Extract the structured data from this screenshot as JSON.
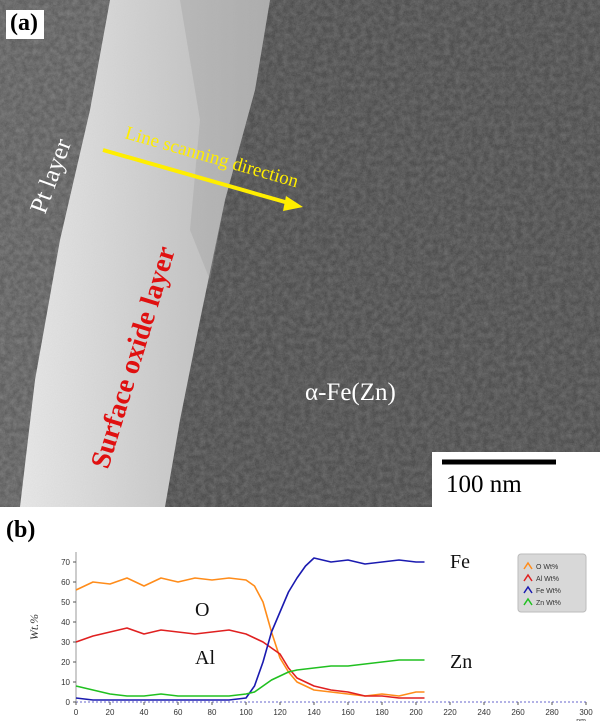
{
  "panel_a": {
    "label": "(a)",
    "pt_layer": "Pt layer",
    "oxide_layer": "Surface oxide layer",
    "scan_direction": "Line scanning direction",
    "substrate": "α-Fe(Zn)",
    "scale_bar": "100 nm",
    "colors": {
      "oxide_label": "#e01010",
      "scan_label": "#ffee00",
      "text": "#ffffff"
    }
  },
  "panel_b": {
    "label": "(b)",
    "chart_data": {
      "type": "line",
      "ylabel": "Wt.%",
      "xlabel_unit": "nm",
      "xlim": [
        0,
        300
      ],
      "ylim": [
        0,
        75
      ],
      "x_ticks": [
        0,
        20,
        40,
        60,
        80,
        100,
        120,
        140,
        160,
        180,
        200,
        220,
        240,
        260,
        280,
        300
      ],
      "y_ticks": [
        0,
        10,
        20,
        30,
        40,
        50,
        60,
        70
      ],
      "legend": {
        "placement": "right",
        "entries": [
          "O Wt%",
          "Al Wt%",
          "Fe Wt%",
          "Zn Wt%"
        ]
      },
      "annotations": [
        {
          "text": "Fe",
          "x": 220,
          "y": 70
        },
        {
          "text": "O",
          "x": 70,
          "y": 46
        },
        {
          "text": "Al",
          "x": 70,
          "y": 22
        },
        {
          "text": "Zn",
          "x": 220,
          "y": 20
        }
      ],
      "series": [
        {
          "name": "O Wt%",
          "color": "#ff8c1a",
          "x": [
            0,
            10,
            20,
            30,
            40,
            50,
            60,
            70,
            80,
            90,
            100,
            105,
            110,
            115,
            120,
            125,
            130,
            140,
            150,
            160,
            170,
            180,
            190,
            200,
            205
          ],
          "values": [
            56,
            60,
            59,
            62,
            58,
            62,
            60,
            62,
            61,
            62,
            61,
            58,
            50,
            35,
            22,
            15,
            10,
            6,
            5,
            4,
            3,
            4,
            3,
            5,
            5
          ]
        },
        {
          "name": "Al Wt%",
          "color": "#e02020",
          "x": [
            0,
            10,
            20,
            30,
            40,
            50,
            60,
            70,
            80,
            90,
            100,
            105,
            110,
            115,
            120,
            125,
            130,
            140,
            150,
            160,
            170,
            180,
            190,
            200,
            205
          ],
          "values": [
            30,
            33,
            35,
            37,
            34,
            36,
            35,
            34,
            35,
            36,
            34,
            32,
            30,
            27,
            24,
            17,
            12,
            8,
            6,
            5,
            3,
            3,
            2,
            2,
            2
          ]
        },
        {
          "name": "Fe Wt%",
          "color": "#1a1ab0",
          "x": [
            0,
            10,
            20,
            30,
            40,
            50,
            60,
            70,
            80,
            90,
            100,
            105,
            110,
            115,
            120,
            125,
            130,
            135,
            140,
            150,
            160,
            170,
            180,
            190,
            200,
            205
          ],
          "values": [
            2,
            1,
            1,
            1,
            1,
            1,
            1,
            1,
            1,
            1,
            2,
            8,
            20,
            35,
            45,
            55,
            62,
            68,
            72,
            70,
            71,
            69,
            70,
            71,
            70,
            70
          ]
        },
        {
          "name": "Zn Wt%",
          "color": "#20c020",
          "x": [
            0,
            10,
            20,
            30,
            40,
            50,
            60,
            70,
            80,
            90,
            100,
            105,
            110,
            115,
            120,
            125,
            130,
            140,
            150,
            160,
            170,
            180,
            190,
            200,
            205
          ],
          "values": [
            8,
            6,
            4,
            3,
            3,
            4,
            3,
            3,
            3,
            3,
            4,
            5,
            8,
            11,
            13,
            15,
            16,
            17,
            18,
            18,
            19,
            20,
            21,
            21,
            21
          ]
        }
      ]
    }
  }
}
